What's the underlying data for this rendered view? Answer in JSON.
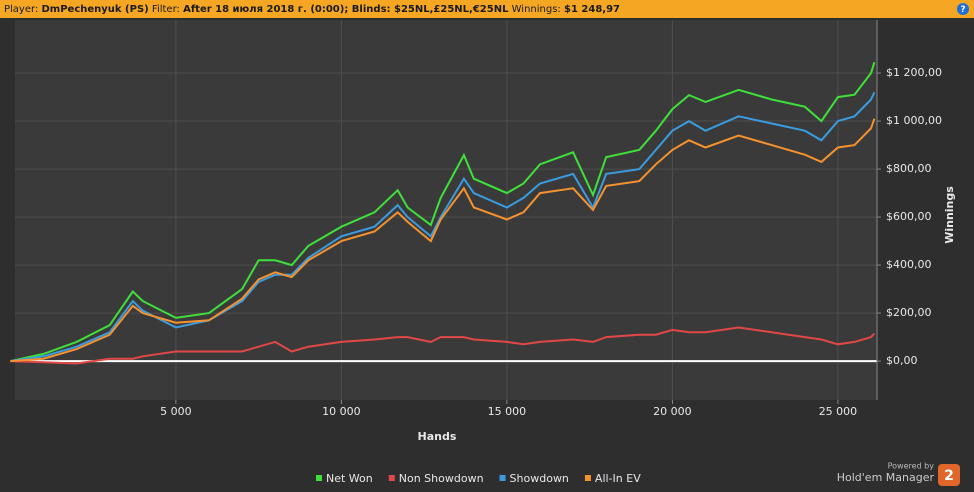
{
  "header": {
    "player_label": "Player:",
    "player": "DmPechenyuk (PS)",
    "filter_label": "Filter:",
    "filter": "After 18 июля 2018 г. (0:00); Blinds: $25NL,£25NL,€25NL",
    "winnings_label": "Winnings:",
    "winnings": "$1 248,97",
    "help": "?"
  },
  "branding": {
    "powered": "Powered by",
    "product": "Hold'em Manager",
    "version": "2"
  },
  "chart_data": {
    "type": "line",
    "x_label": "Hands",
    "y_label": "Winnings",
    "grid": true,
    "x": [
      0,
      1000,
      2000,
      3000,
      3700,
      4000,
      5000,
      6000,
      7000,
      7500,
      8000,
      8500,
      9000,
      10000,
      11000,
      11700,
      12000,
      12700,
      13000,
      13700,
      14000,
      15000,
      15500,
      16000,
      17000,
      17600,
      18000,
      19000,
      19500,
      20000,
      20500,
      21000,
      22000,
      23000,
      24000,
      24500,
      25000,
      25500,
      26000,
      26100
    ],
    "series": [
      {
        "name": "Net Won",
        "color": "#3fe03a",
        "values": [
          0,
          30,
          80,
          150,
          290,
          250,
          180,
          200,
          300,
          420,
          420,
          400,
          480,
          560,
          620,
          712,
          640,
          567,
          680,
          858,
          760,
          700,
          740,
          820,
          870,
          692,
          850,
          880,
          960,
          1050,
          1108,
          1080,
          1130,
          1090,
          1060,
          1000,
          1100,
          1110,
          1200,
          1245
        ]
      },
      {
        "name": "Non Showdown",
        "color": "#e04848",
        "values": [
          0,
          -5,
          -10,
          10,
          10,
          20,
          40,
          40,
          40,
          60,
          80,
          40,
          60,
          80,
          90,
          100,
          100,
          80,
          100,
          100,
          90,
          80,
          70,
          80,
          90,
          80,
          100,
          110,
          110,
          130,
          120,
          120,
          140,
          120,
          100,
          90,
          70,
          80,
          100,
          115
        ]
      },
      {
        "name": "Showdown",
        "color": "#3a9ce0",
        "values": [
          0,
          20,
          60,
          120,
          250,
          210,
          140,
          170,
          250,
          330,
          360,
          360,
          430,
          520,
          560,
          650,
          600,
          520,
          600,
          760,
          700,
          640,
          680,
          740,
          780,
          640,
          780,
          800,
          880,
          960,
          1000,
          960,
          1020,
          990,
          960,
          920,
          1000,
          1020,
          1090,
          1120
        ]
      },
      {
        "name": "All-In EV",
        "color": "#f5922e",
        "values": [
          0,
          10,
          50,
          110,
          230,
          200,
          160,
          170,
          260,
          340,
          370,
          350,
          420,
          500,
          540,
          620,
          580,
          500,
          590,
          720,
          640,
          590,
          620,
          700,
          720,
          630,
          730,
          750,
          820,
          880,
          920,
          890,
          940,
          900,
          860,
          830,
          890,
          900,
          970,
          1010
        ]
      }
    ],
    "xlim": [
      140,
      26180
    ],
    "xticks": [
      {
        "value": 5000,
        "label": "5 000"
      },
      {
        "value": 10000,
        "label": "10 000"
      },
      {
        "value": 15000,
        "label": "15 000"
      },
      {
        "value": 20000,
        "label": "20 000"
      },
      {
        "value": 25000,
        "label": "25 000"
      }
    ],
    "ylim": [
      -162,
      1421
    ],
    "yticks": [
      {
        "value": 0,
        "label": "$0,00"
      },
      {
        "value": 200,
        "label": "$200,00"
      },
      {
        "value": 400,
        "label": "$400,00"
      },
      {
        "value": 600,
        "label": "$600,00"
      },
      {
        "value": 800,
        "label": "$800,00"
      },
      {
        "value": 1000,
        "label": "$1 000,00"
      },
      {
        "value": 1200,
        "label": "$1 200,00"
      }
    ]
  }
}
